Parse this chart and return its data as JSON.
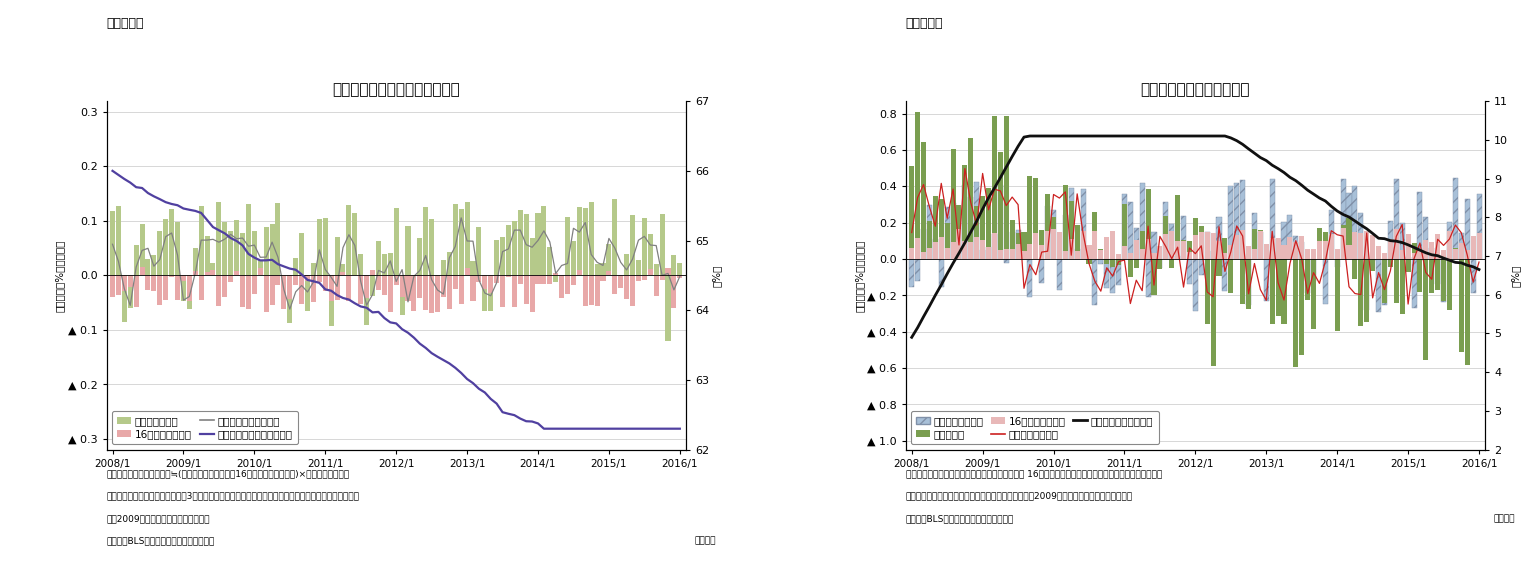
{
  "fig5": {
    "title": "労働参加率の変化（要因分解）",
    "title_prefix": "（図表５）",
    "ylabel_left": "（前月差、%ポイント）",
    "ylabel_right": "（%）",
    "ylim_left": [
      -0.32,
      0.32
    ],
    "ylim_right": [
      62,
      67
    ],
    "yticks_left": [
      0.3,
      0.2,
      0.1,
      0.0,
      -0.1,
      -0.2,
      -0.3
    ],
    "yticks_right": [
      62,
      63,
      64,
      65,
      66,
      67
    ],
    "note1": "（注）労働参加率の前月差≒(労働力人口の伸び率（16才以上人口の伸び率)×前月の労働参加率",
    "note2": "　　グラフの前月差データは後方3カ月移動平均。また、年次ごとに人口推計が変更になっているため、",
    "note3": "　　2009年以降は断層を調整している",
    "source": "（資料）BLSよりニッセイ基礎研究所作成",
    "monthly": "（月次）",
    "xticklabels": [
      "2008/1",
      "2009/1",
      "2010/1",
      "2011/1",
      "2012/1",
      "2013/1",
      "2014/1",
      "2015/1",
      "2016/1"
    ],
    "legend_labor": "労働力人口要因",
    "legend_pop16": "16才以上人口要因",
    "legend_mom": "労働参加率（前月差）",
    "legend_level": "労働参加率（水準、右軸）",
    "bar_color_labor": "#b5c98a",
    "bar_color_pop": "#e8a8a8",
    "line_color_mom": "#808080",
    "line_color_level": "#5040a0",
    "background_color": "#ffffff"
  },
  "fig6": {
    "title": "失業率の変化（要因分解）",
    "title_prefix": "（図表６）",
    "ylabel_left": "（前月差、%ポイント）",
    "ylabel_right": "（%）",
    "ylim_left": [
      -1.05,
      0.87
    ],
    "ylim_right": [
      2,
      11
    ],
    "yticks_left": [
      0.8,
      0.6,
      0.4,
      0.2,
      0.0,
      -0.2,
      -0.4,
      -0.6,
      -0.8,
      -1.0
    ],
    "yticks_right": [
      2,
      3,
      4,
      5,
      6,
      7,
      8,
      9,
      10,
      11
    ],
    "note1": "（注）非労働力人口の増加、就業者人口の増加、 16才以上人口の減少が、それぞれ失業率の改善要因。",
    "note2": "　　また、年次ごとに人口推計が変更になっており、2009年以降は断層を調整している。",
    "source": "（資料）BLSよりニッセイ基礎研究所作成",
    "monthly": "（月次）",
    "xticklabels": [
      "2008/1",
      "2009/1",
      "2010/1",
      "2011/1",
      "2012/1",
      "2013/1",
      "2014/1",
      "2015/1",
      "2016/1"
    ],
    "legend_nonlabor": "非労働力人口要因",
    "legend_employed": "就業者要因",
    "legend_pop16": "16才以上人口要因",
    "legend_mom": "失業率（前月差）",
    "legend_level": "失業率（水準、右軸）",
    "bar_color_nonlabor": "#a8c0d8",
    "bar_color_employed": "#7a9e50",
    "bar_color_pop": "#e8b8b8",
    "line_color_mom": "#cc2020",
    "line_color_level": "#101010",
    "background_color": "#ffffff"
  }
}
